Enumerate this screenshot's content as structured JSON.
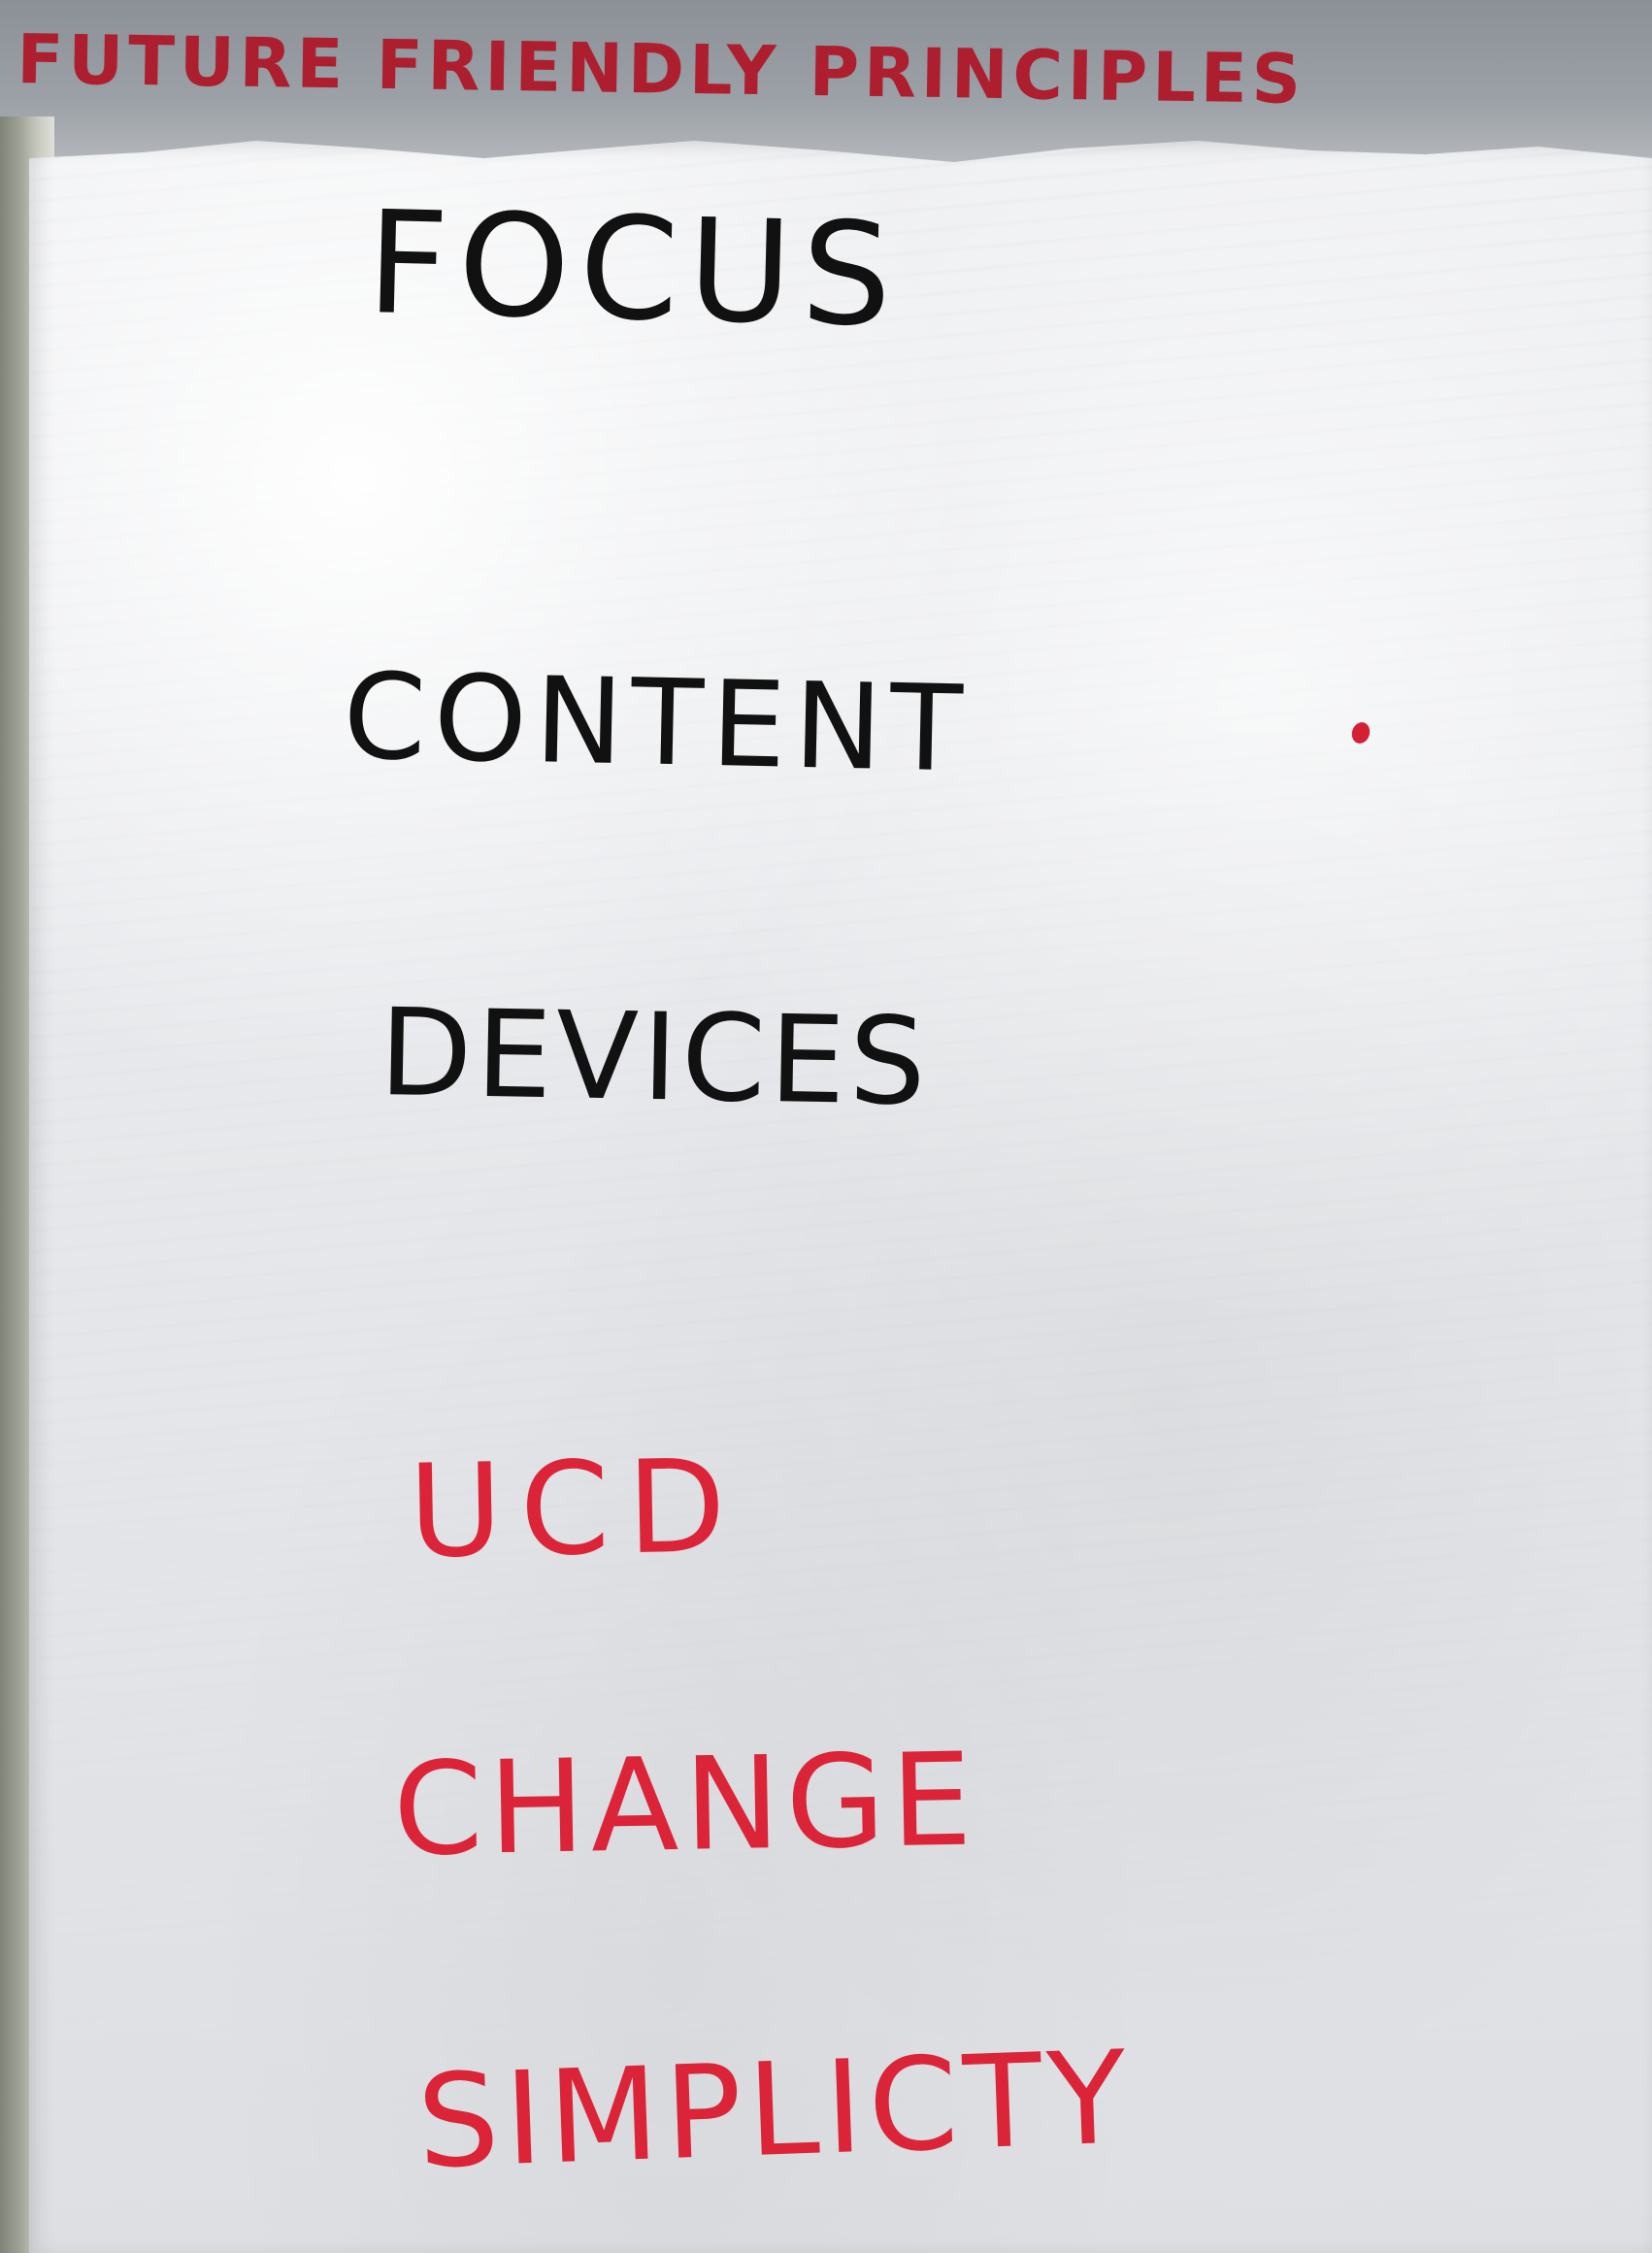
{
  "heading": "FUTURE FRIENDLY PRINCIPLES",
  "items": [
    "FOCUS",
    "CONTENT",
    "DEVICES",
    "UCD",
    "CHANGE",
    "SIMPLICTY"
  ],
  "colors": {
    "heading": "#ad1f2f",
    "black_ink": "#111111",
    "red_ink": "#db2438",
    "paper": "#e8eaed",
    "background": "#6f7378"
  }
}
